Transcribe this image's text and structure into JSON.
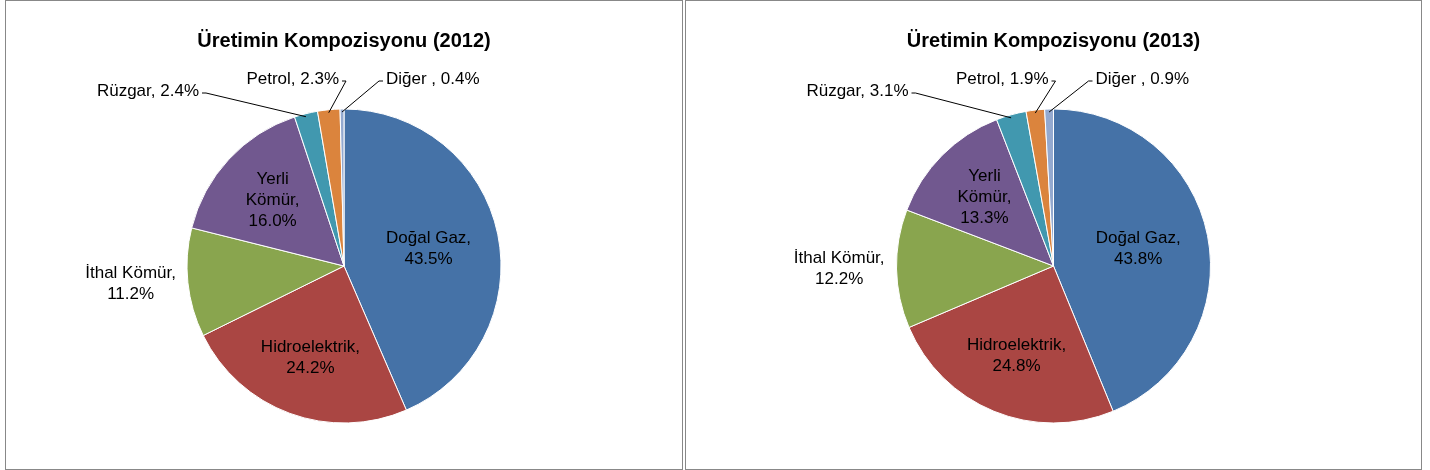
{
  "chart_data": [
    {
      "type": "pie",
      "title": "Üretimin Kompozisyonu (2012)",
      "categories": [
        "Doğal Gaz",
        "Hidroelektrik",
        "İthal Kömür",
        "Yerli Kömür",
        "Rüzgar",
        "Petrol",
        "Diğer"
      ],
      "values": [
        43.5,
        24.2,
        11.2,
        16.0,
        2.4,
        2.3,
        0.4
      ],
      "colors": [
        "#4572a7",
        "#aa4643",
        "#89a54e",
        "#71588f",
        "#4198af",
        "#db843d",
        "#93a9cf"
      ],
      "value_labels": [
        ", 43.5%",
        ", 24.2%",
        ", 11.2%",
        ", 16.0%",
        ", 2.4%",
        ", 2.3%",
        " , 0.4%"
      ]
    },
    {
      "type": "pie",
      "title": "Üretimin Kompozisyonu (2013)",
      "categories": [
        "Doğal Gaz",
        "Hidroelektrik",
        "İthal Kömür",
        "Yerli Kömür",
        "Rüzgar",
        "Petrol",
        "Diğer"
      ],
      "values": [
        43.8,
        24.8,
        12.2,
        13.3,
        3.1,
        1.9,
        0.9
      ],
      "colors": [
        "#4572a7",
        "#aa4643",
        "#89a54e",
        "#71588f",
        "#4198af",
        "#db843d",
        "#93a9cf"
      ],
      "value_labels": [
        ", 43.8%",
        ", 24.8%",
        ", 12.2%",
        ", 13.3%",
        ", 3.1%",
        ", 1.9%",
        " , 0.9%"
      ]
    }
  ]
}
